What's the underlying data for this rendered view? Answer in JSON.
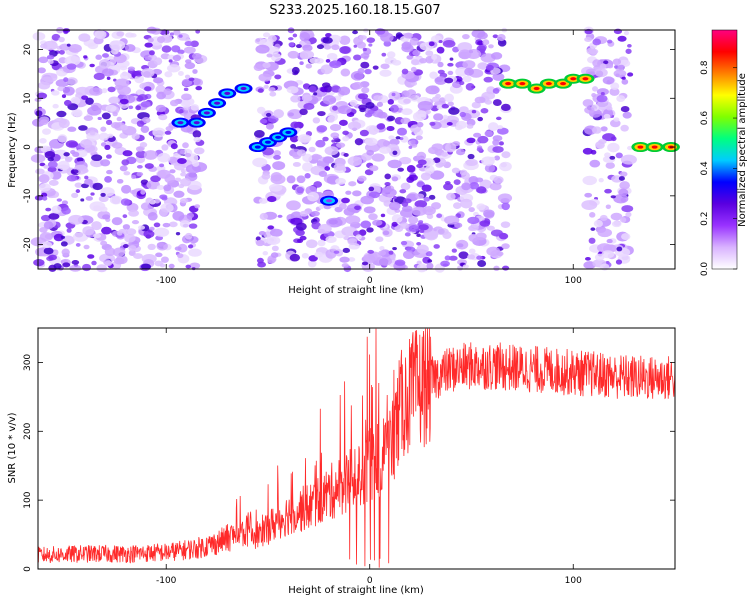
{
  "figure": {
    "title": "S233.2025.160.18.15.G07"
  },
  "chart_data": [
    {
      "type": "heatmap",
      "title": "S233.2025.160.18.15.G07",
      "xlabel": "Height of straight line (km)",
      "ylabel": "Frequency (Hz)",
      "xlim": [
        -163,
        150
      ],
      "ylim": [
        -25,
        24
      ],
      "x_ticks": [
        -100,
        0,
        100
      ],
      "y_ticks": [
        -20,
        -10,
        0,
        10,
        20
      ],
      "colorbar": {
        "label": "Normalized spectral amplitude",
        "ticks": [
          0.0,
          0.2,
          0.4,
          0.6,
          0.8
        ],
        "range": [
          0,
          0.95
        ],
        "colors": [
          "#ffffff",
          "#d9b3ff",
          "#9933ff",
          "#5a00e0",
          "#0000ff",
          "#00ccff",
          "#00ff80",
          "#80ff00",
          "#ffff00",
          "#ff8000",
          "#ff0000",
          "#ff0080"
        ]
      },
      "blank_bands_km": [
        [
          -83,
          -55
        ],
        [
          -44,
          -39
        ],
        [
          67,
          107
        ],
        [
          128,
          150
        ]
      ],
      "features": [
        {
          "x": [
            -93,
            -85,
            -80,
            -75,
            -70,
            -62
          ],
          "y": [
            5,
            5,
            7,
            9,
            11,
            12
          ],
          "amplitude": 0.3
        },
        {
          "x": [
            -55,
            -50,
            -45,
            -40
          ],
          "y": [
            0,
            1,
            2,
            3
          ],
          "amplitude": 0.35
        },
        {
          "x": [
            -20
          ],
          "y": [
            -11
          ],
          "amplitude": 0.2
        },
        {
          "x": [
            68,
            75,
            82,
            88,
            95,
            100,
            106
          ],
          "y": [
            13,
            13,
            12,
            13,
            13,
            14,
            14
          ],
          "amplitude": 0.88
        },
        {
          "x": [
            133,
            140,
            148
          ],
          "y": [
            0,
            0,
            0
          ],
          "amplitude": 0.88
        }
      ]
    },
    {
      "type": "line",
      "xlabel": "Height of straight line (km)",
      "ylabel": "SNR (10 * v/v)",
      "xlim": [
        -163,
        150
      ],
      "ylim": [
        0,
        350
      ],
      "x_ticks": [
        -100,
        0,
        100
      ],
      "y_ticks": [
        0,
        100,
        200,
        300
      ],
      "color": "#ff2a2a",
      "series": [
        {
          "x": [
            -163,
            -140,
            -120,
            -100,
            -85,
            -75,
            -70,
            -65,
            -60,
            -55,
            -50,
            -45,
            -40,
            -35,
            -30,
            -25,
            -20,
            -15,
            -10,
            -5,
            0,
            5,
            10,
            15,
            20,
            25,
            30,
            35,
            40,
            50,
            60,
            70,
            80,
            90,
            100,
            110,
            120,
            130,
            140,
            150
          ],
          "values": [
            20,
            22,
            22,
            24,
            30,
            38,
            45,
            50,
            55,
            50,
            60,
            70,
            80,
            85,
            90,
            100,
            110,
            120,
            130,
            140,
            150,
            160,
            175,
            235,
            255,
            265,
            275,
            283,
            290,
            295,
            295,
            292,
            290,
            288,
            285,
            283,
            280,
            278,
            277,
            278
          ]
        }
      ]
    }
  ]
}
